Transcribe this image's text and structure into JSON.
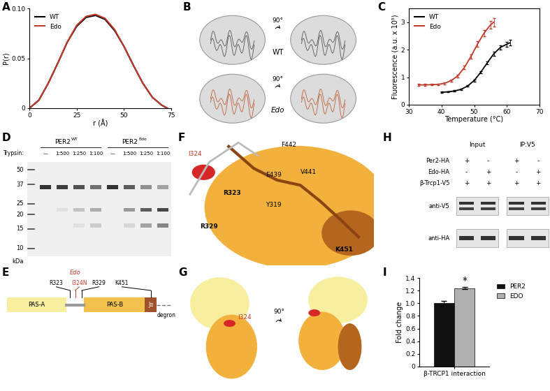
{
  "chart_data": [
    {
      "panel": "A",
      "type": "line",
      "xlabel": "r (Å)",
      "ylabel": "P(r)",
      "x": [
        0,
        5,
        10,
        15,
        20,
        25,
        30,
        35,
        40,
        45,
        50,
        55,
        60,
        65,
        70,
        73
      ],
      "series": [
        {
          "name": "WT",
          "color": "#000000",
          "values": [
            0,
            0.008,
            0.025,
            0.045,
            0.066,
            0.082,
            0.091,
            0.093,
            0.089,
            0.078,
            0.062,
            0.043,
            0.025,
            0.011,
            0.003,
            0
          ]
        },
        {
          "name": "Edo",
          "color": "#c0392b",
          "values": [
            0,
            0.008,
            0.025,
            0.045,
            0.066,
            0.083,
            0.092,
            0.094,
            0.09,
            0.079,
            0.062,
            0.043,
            0.025,
            0.011,
            0.003,
            0
          ]
        }
      ],
      "xlim": [
        0,
        75
      ],
      "xticks": [
        0,
        25,
        50,
        75
      ],
      "ylim": [
        0,
        0.1
      ],
      "yticks": [
        0,
        0.05,
        {
          "value": 0.1,
          "label": "0.10"
        }
      ],
      "legend": "upper left"
    },
    {
      "panel": "C",
      "type": "line",
      "xlabel": "Temperature (°C)",
      "ylabel": "Fluorescence (a.u. x 10⁵)",
      "series": [
        {
          "name": "WT",
          "color": "#000000",
          "x": [
            40,
            42,
            44,
            46,
            48,
            50,
            52,
            54,
            56,
            58,
            60,
            61
          ],
          "values": [
            0.45,
            0.47,
            0.5,
            0.56,
            0.68,
            0.88,
            1.18,
            1.52,
            1.85,
            2.08,
            2.2,
            2.25
          ],
          "errors": [
            0.02,
            0.02,
            0.02,
            0.03,
            0.03,
            0.04,
            0.05,
            0.06,
            0.07,
            0.08,
            0.09,
            0.1
          ]
        },
        {
          "name": "Edo",
          "color": "#c0392b",
          "x": [
            33,
            35,
            37,
            39,
            41,
            43,
            45,
            47,
            49,
            51,
            53,
            55,
            56
          ],
          "values": [
            0.72,
            0.72,
            0.73,
            0.74,
            0.78,
            0.88,
            1.05,
            1.35,
            1.75,
            2.2,
            2.6,
            2.9,
            3.0
          ],
          "errors": [
            0.03,
            0.03,
            0.03,
            0.03,
            0.04,
            0.04,
            0.05,
            0.06,
            0.08,
            0.1,
            0.12,
            0.14,
            0.15
          ]
        }
      ],
      "xlim": [
        30,
        70
      ],
      "xticks": [
        30,
        40,
        50,
        60,
        70
      ],
      "ylim": [
        0,
        3.5
      ],
      "yticks": [
        0,
        1,
        2,
        3
      ],
      "legend": "upper left"
    },
    {
      "panel": "I",
      "type": "bar",
      "ylabel": "Fold change",
      "categories": [
        "β-TRCP1 interaction"
      ],
      "series": [
        {
          "name": "PER2",
          "color": "#111111",
          "values": [
            1.0
          ],
          "errors": [
            0.04
          ]
        },
        {
          "name": "EDO",
          "color": "#b0b0b0",
          "values": [
            1.24
          ],
          "errors": [
            0.02
          ]
        }
      ],
      "ylim": [
        0,
        1.4
      ],
      "yticks": [
        0,
        0.2,
        0.4,
        0.6,
        0.8,
        1.0,
        1.2,
        1.4
      ],
      "annotations": [
        {
          "text": "*",
          "series": "EDO",
          "category": "β-TRCP1 interaction"
        }
      ],
      "legend": "upper left"
    }
  ],
  "structure_views": {
    "panel": "B",
    "rotation": "90°",
    "rows": [
      "WT",
      "Edo"
    ]
  },
  "gel": {
    "panel": "D",
    "treatment": "Trypsin:",
    "groups": [
      {
        "name": "PER2",
        "superscript": "WT",
        "lanes": [
          "—",
          "1:500",
          "1:250",
          "1:100"
        ]
      },
      {
        "name": "PER2",
        "superscript": "Edo",
        "lanes": [
          "—",
          "1:500",
          "1:250",
          "1:100"
        ]
      }
    ],
    "markers": [
      50,
      37,
      25,
      20,
      15,
      10
    ],
    "marker_unit": "kDa"
  },
  "domain_map": {
    "panel": "E",
    "domains": [
      "PAS-A",
      "PAS-B",
      "Jα"
    ],
    "tail": "degron",
    "sites": [
      "R323",
      "I324N",
      "R329",
      "K451"
    ],
    "mutant": "Edo"
  },
  "structure_detail": {
    "panel": "F",
    "residues": [
      {
        "label": "I324",
        "color": "#c0392b"
      },
      {
        "label": "F442",
        "color": "#000000"
      },
      {
        "label": "R323",
        "color": "#000000",
        "weight": "bold"
      },
      {
        "label": "E439",
        "color": "#000000"
      },
      {
        "label": "V441",
        "color": "#000000"
      },
      {
        "label": "Y319",
        "color": "#000000"
      },
      {
        "label": "R329",
        "color": "#000000",
        "weight": "bold"
      },
      {
        "label": "K451",
        "color": "#000000",
        "weight": "bold"
      }
    ]
  },
  "structure_overview": {
    "panel": "G",
    "residue": "I324",
    "rotation": "90°"
  },
  "blot": {
    "panel": "H",
    "columns": [
      "Input",
      "IP:V5"
    ],
    "rows": [
      {
        "label": "Per2-HA",
        "signs": [
          "+",
          "-",
          "+",
          "-"
        ]
      },
      {
        "label": "Edo-HA",
        "signs": [
          "-",
          "+",
          "-",
          "+"
        ]
      },
      {
        "label": "β-Trcp1-V5",
        "signs": [
          "+",
          "+",
          "+",
          "+"
        ]
      }
    ],
    "antibodies": [
      "anti-V5",
      "anti-HA"
    ]
  }
}
